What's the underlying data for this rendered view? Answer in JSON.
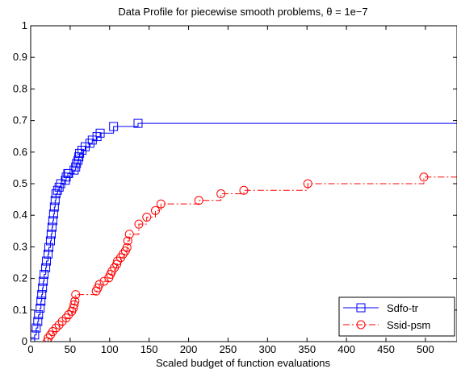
{
  "chart_data": {
    "type": "line",
    "title": "Data Profile for piecewise smooth problems, θ = 1e−7",
    "xlabel": "Scaled budget of function evaluations",
    "ylabel": "",
    "xlim": [
      0,
      540
    ],
    "ylim": [
      0,
      1
    ],
    "x_ticks": [
      0,
      50,
      100,
      150,
      200,
      250,
      300,
      350,
      400,
      450,
      500
    ],
    "y_ticks": [
      0,
      0.1,
      0.2,
      0.3,
      0.4,
      0.5,
      0.6,
      0.7,
      0.8,
      0.9,
      1
    ],
    "grid": false,
    "legend_position": "bottom-right",
    "series": [
      {
        "name": "Sdfo-tr",
        "color": "#0000ff",
        "line_style": "solid",
        "marker": "square",
        "x": [
          0,
          5,
          7,
          9,
          10,
          12,
          13,
          14,
          15,
          16,
          17,
          19,
          20,
          22,
          23,
          25,
          26,
          27,
          28,
          29,
          30,
          31,
          32,
          34,
          36,
          38,
          44,
          45,
          47,
          48,
          55,
          57,
          58,
          60,
          61,
          62,
          65,
          69,
          75,
          78,
          84,
          88,
          105,
          136,
          540
        ],
        "y": [
          0,
          0.021,
          0.043,
          0.064,
          0.085,
          0.106,
          0.128,
          0.149,
          0.17,
          0.191,
          0.213,
          0.234,
          0.255,
          0.277,
          0.298,
          0.319,
          0.34,
          0.362,
          0.383,
          0.404,
          0.426,
          0.447,
          0.468,
          0.479,
          0.489,
          0.5,
          0.511,
          0.521,
          0.532,
          0.532,
          0.543,
          0.553,
          0.564,
          0.574,
          0.585,
          0.596,
          0.606,
          0.617,
          0.628,
          0.638,
          0.649,
          0.66,
          0.681,
          0.691,
          0.691
        ]
      },
      {
        "name": "Ssid-psm",
        "color": "#ff0000",
        "line_style": "dash-dot",
        "marker": "circle",
        "x": [
          21,
          22,
          25,
          28,
          32,
          36,
          40,
          45,
          48,
          52,
          54,
          55,
          56,
          57,
          83,
          85,
          87,
          93,
          99,
          101,
          103,
          106,
          109,
          110,
          114,
          117,
          120,
          122,
          123,
          125,
          137,
          147,
          158,
          165,
          213,
          241,
          270,
          351,
          498,
          540
        ],
        "y": [
          0,
          0.011,
          0.021,
          0.032,
          0.043,
          0.053,
          0.064,
          0.075,
          0.085,
          0.096,
          0.106,
          0.117,
          0.128,
          0.149,
          0.16,
          0.17,
          0.181,
          0.191,
          0.202,
          0.213,
          0.223,
          0.234,
          0.245,
          0.255,
          0.266,
          0.277,
          0.287,
          0.298,
          0.319,
          0.34,
          0.372,
          0.394,
          0.415,
          0.436,
          0.447,
          0.468,
          0.479,
          0.5,
          0.521,
          0.521
        ]
      }
    ]
  }
}
